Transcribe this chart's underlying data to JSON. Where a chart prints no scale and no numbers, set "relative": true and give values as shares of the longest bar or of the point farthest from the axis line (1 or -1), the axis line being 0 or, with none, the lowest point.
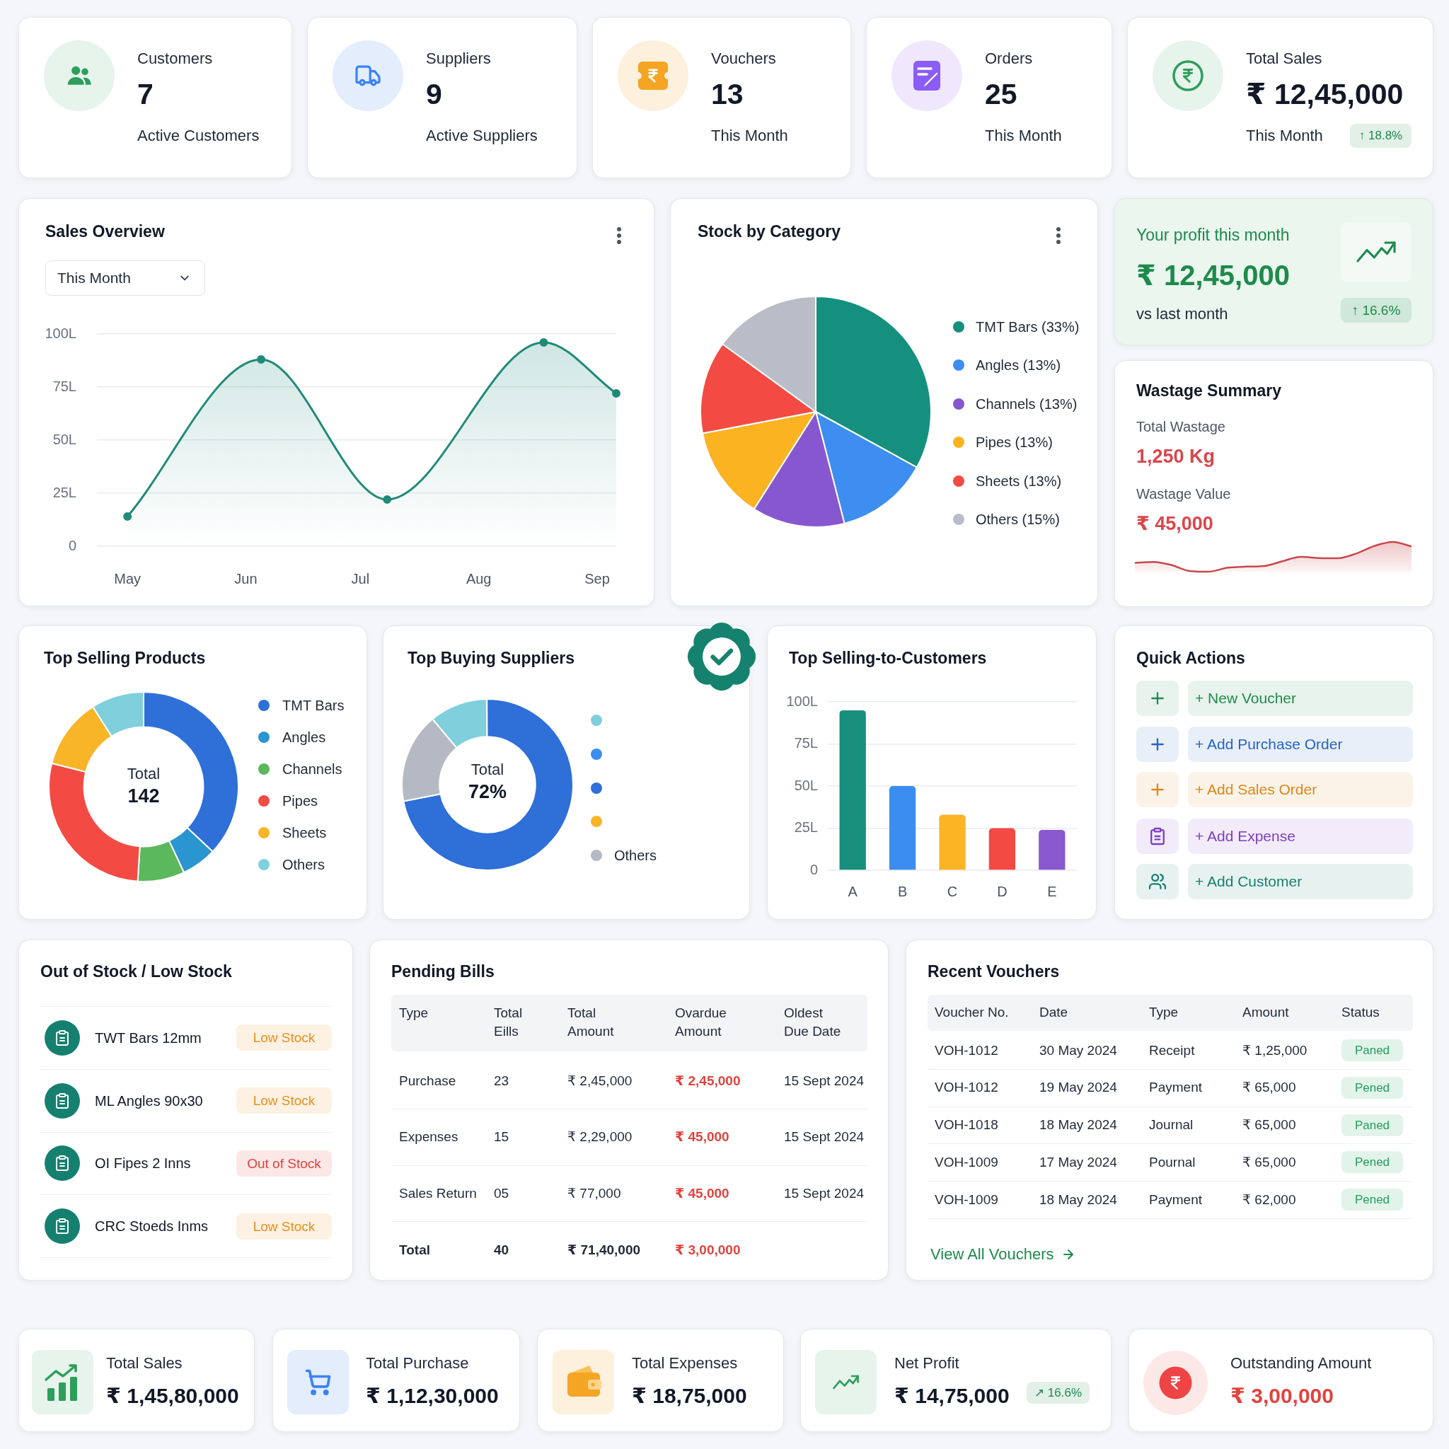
{
  "chart_data": [
    {
      "type": "other",
      "title": "Customers",
      "annotations": [
        "7",
        "Active Customers"
      ]
    },
    {
      "type": "other",
      "title": "Suppliers",
      "annotations": [
        "9",
        "Active Suppliers"
      ]
    },
    {
      "type": "other",
      "title": "Vouchers",
      "annotations": [
        "13",
        "This Month"
      ]
    },
    {
      "type": "other",
      "title": "Orders",
      "annotations": [
        "25",
        "This Month"
      ]
    },
    {
      "type": "other",
      "title": "Total Sales",
      "annotations": [
        "₹ 12,45,000",
        "This Month",
        "↑ 18.8%"
      ]
    },
    {
      "type": "area",
      "title": "Sales Overview",
      "annotations": [
        "This Month"
      ],
      "x": [
        "--05-01",
        "--06-05",
        "--07-08",
        "--08-18",
        "--09-06"
      ],
      "values": [
        14,
        88,
        22,
        96,
        72
      ],
      "color": "#1f8a78",
      "xlim": [
        "--04-23",
        "--09-06"
      ],
      "xticks": [
        {
          "value": "--05-01",
          "label": "May"
        },
        {
          "value": "--06-01",
          "label": "Jun"
        },
        {
          "value": "--07-01",
          "label": "Jul"
        },
        {
          "value": "--08-01",
          "label": "Aug"
        },
        {
          "value": "--09-01",
          "label": "Sep"
        }
      ],
      "ylim": [
        0,
        100
      ],
      "yticks": [
        0,
        {
          "value": 25,
          "label": "25L"
        },
        {
          "value": 50,
          "label": "50L"
        },
        {
          "value": 75,
          "label": "75L"
        },
        {
          "value": 100,
          "label": "100L"
        }
      ],
      "grid": "y",
      "marker": "circle"
    },
    {
      "type": "pie",
      "title": "Stock by Category",
      "categories": [
        "TMT Bars (33%)",
        "Angles (13%)",
        "Channels (13%)",
        "Pipes (13%)",
        "Sheets (13%)",
        "Others (15%)"
      ],
      "values": [
        33,
        13,
        13,
        13,
        13,
        15
      ],
      "colors": [
        "#16907e",
        "#3d8ef0",
        "#8757cf",
        "#fbb322",
        "#f34b44",
        "#b9bdc7"
      ],
      "legend": "right"
    },
    {
      "type": "other",
      "title": "Your profit this month",
      "annotations": [
        "₹ 12,45,000",
        "vs last month",
        "↑ 16.6%"
      ]
    },
    {
      "type": "other",
      "title": "Wastage Summary",
      "annotations": [
        "Total Wastage",
        "1,250 Kg",
        "Wastage Value",
        "₹ 45,000"
      ]
    },
    {
      "type": "area",
      "categories": [
        null,
        null,
        null,
        null,
        null,
        null,
        null,
        null,
        null,
        null,
        null,
        null,
        null,
        null,
        null,
        null
      ],
      "values": [
        0.3,
        0.33,
        0.22,
        0.02,
        0,
        0.13,
        0.17,
        0.19,
        0.35,
        0.5,
        0.46,
        0.45,
        0.61,
        0.87,
        1,
        0.85
      ],
      "color": "#c9474c",
      "relative": true
    },
    {
      "type": "donut",
      "title": "Top Selling Products",
      "annotations": [
        "Total",
        "142"
      ],
      "categories": [
        "TMT Bars",
        "Angles",
        "Channels",
        "Pipes",
        "Sheets",
        "Others"
      ],
      "values": [
        37,
        6,
        8,
        28,
        12,
        9
      ],
      "colors": [
        "#2e6fd8",
        "#2a95cf",
        "#5cb85c",
        "#f34b44",
        "#f8b528",
        "#7fd0dc"
      ],
      "legend": "right"
    },
    {
      "type": "donut",
      "title": "Top Buying Suppliers",
      "annotations": [
        "Total",
        "72%"
      ],
      "categories": [
        null,
        null,
        null,
        null,
        "Others"
      ],
      "values": [
        11,
        0,
        72,
        0,
        17
      ],
      "colors": [
        "#7fcfdc",
        "#3b8ef0",
        "#2e6fd8",
        "#f8b528",
        "#b4b9c3"
      ],
      "legend": "right"
    },
    {
      "type": "bar",
      "title": "Top Selling-to-Customers",
      "categories": [
        "A",
        "B",
        "C",
        "D",
        "E"
      ],
      "values": [
        95,
        50,
        33,
        25,
        24
      ],
      "colors": [
        "#188f7c",
        "#3c8df0",
        "#fbb424",
        "#f34a44",
        "#8a58cf"
      ],
      "ylim": [
        0,
        100
      ],
      "yticks": [
        0,
        {
          "value": 25,
          "label": "25L"
        },
        {
          "value": 50,
          "label": "50L"
        },
        {
          "value": 75,
          "label": "75L"
        },
        {
          "value": 100,
          "label": "100L"
        }
      ],
      "grid": "y"
    },
    {
      "type": "other",
      "title": "Quick Actions",
      "annotations": [
        "+ New Voucher",
        "+ Add Purchase Order",
        "+ Add Sales Order",
        "+ Add Expense",
        "+ Add Customer"
      ],
      "colors": [
        "#1f8a4c",
        "#2563c9",
        "#e0871a",
        "#7e3fc0",
        "#17806f"
      ]
    },
    {
      "type": "other",
      "title": "Out of Stock / Low Stock",
      "cell_labels": [
        [
          "TWT Bars 12mm",
          "Low Stock"
        ],
        [
          "ML Angles 90x30",
          "Low Stock"
        ],
        [
          "OI Fipes 2 Inns",
          "Out of Stock"
        ],
        [
          "CRC Stoeds Inms",
          "Low Stock"
        ]
      ],
      "colors": [
        "#e8901c",
        "#e8901c",
        "#e0443e",
        "#e8901c"
      ]
    },
    {
      "type": "other",
      "title": "Pending Bills",
      "categories": [
        "Type",
        "Total Eills",
        "Total Amount",
        "Ovardue Amount",
        "Oldest Due Date"
      ],
      "cell_labels": [
        [
          "Purchase",
          "23",
          "₹ 2,45,000",
          "₹ 2,45,000",
          "15 Sept 2024"
        ],
        [
          "Expenses",
          "15",
          "₹ 2,29,000",
          "₹ 45,000",
          "15 Sept 2024"
        ],
        [
          "Sales Return",
          "05",
          "₹ 77,000",
          "₹ 45,000",
          "15 Sept 2024"
        ],
        [
          "Total",
          "40",
          "₹ 71,40,000",
          "₹ 3,00,000",
          null
        ]
      ]
    },
    {
      "type": "other",
      "title": "Recent Vouchers",
      "categories": [
        "Voucher No.",
        "Date",
        "Type",
        "Amount",
        "Status"
      ],
      "cell_labels": [
        [
          "VOH-1012",
          "30 May 2024",
          "Receipt",
          "₹ 1,25,000",
          "Paned"
        ],
        [
          "VOH-1012",
          "19 May 2024",
          "Payment",
          "₹ 65,000",
          "Pened"
        ],
        [
          "VOH-1018",
          "18 May 2024",
          "Journal",
          "₹ 65,000",
          "Paned"
        ],
        [
          "VOH-1009",
          "17 May 2024",
          "Pournal",
          "₹ 65,000",
          "Pened"
        ],
        [
          "VOH-1009",
          "18 May 2024",
          "Payment",
          "₹ 62,000",
          "Pened"
        ]
      ],
      "annotations": [
        "View All Vouchers"
      ]
    },
    {
      "type": "other",
      "title": "Total Sales",
      "annotations": [
        "₹ 1,45,80,000"
      ]
    },
    {
      "type": "other",
      "title": "Total Purchase",
      "annotations": [
        "₹ 1,12,30,000"
      ]
    },
    {
      "type": "other",
      "title": "Total Expenses",
      "annotations": [
        "₹ 18,75,000"
      ]
    },
    {
      "type": "other",
      "title": "Net Profit",
      "annotations": [
        "₹ 14,75,000",
        "↗ 16.6%"
      ]
    },
    {
      "type": "other",
      "title": "Outstanding Amount",
      "annotations": [
        "₹ 3,00,000"
      ]
    }
  ]
}
